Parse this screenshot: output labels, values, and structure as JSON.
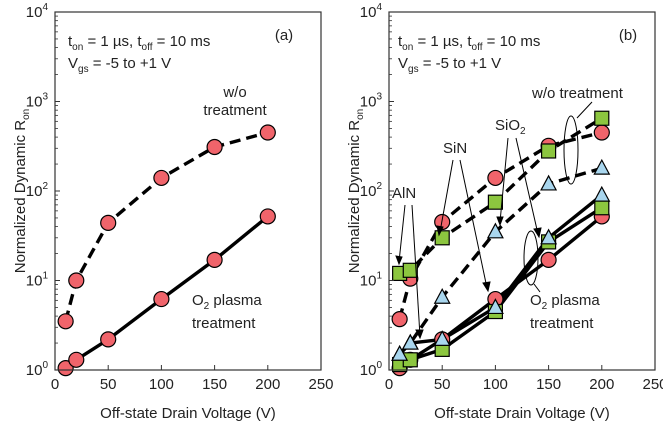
{
  "colors": {
    "circle_fill": "#f0646b",
    "square_fill": "#8cc63f",
    "triangle_fill": "#a9d6ee",
    "line": "#000000",
    "axis": "#333333"
  },
  "chart_data": [
    {
      "type": "line",
      "panel_label": "(a)",
      "xlabel": "Off-state Drain Voltage (V)",
      "ylabel_main": "Normalized Dynamic R",
      "ylabel_sub": "on",
      "ylog": true,
      "xlim": [
        0,
        250
      ],
      "ylim": [
        1,
        10000
      ],
      "xticks": [
        "0",
        "50",
        "100",
        "150",
        "200",
        "250"
      ],
      "ytick_exponents": [
        "0",
        "1",
        "2",
        "3",
        "4"
      ],
      "annotations": {
        "cond_line1": {
          "t": "t",
          "on": "on",
          "v1": " = 1 µs, t",
          "off": "off",
          "v2": " = 10 ms"
        },
        "cond_line2": {
          "v": "V",
          "gs": "gs",
          "rest": " = -5 to +1 V"
        },
        "untreated_line1": "w/o",
        "untreated_line2": "treatment",
        "treated_line1a": "O",
        "treated_line1_sub": "2",
        "treated_line1b": " plasma",
        "treated_line2": "treatment"
      },
      "series": [
        {
          "marker": "circle",
          "style": "dashed",
          "x": [
            10,
            20,
            50,
            100,
            150,
            200
          ],
          "y": [
            3.5,
            10,
            44,
            140,
            310,
            450
          ]
        },
        {
          "marker": "circle",
          "style": "solid",
          "x": [
            10,
            20,
            50,
            100,
            150,
            200
          ],
          "y": [
            1.05,
            1.3,
            2.2,
            6.2,
            17,
            52
          ]
        }
      ]
    },
    {
      "type": "line",
      "panel_label": "(b)",
      "xlabel": "Off-state Drain Voltage (V)",
      "ylabel_main": "Normalized Dynamic R",
      "ylabel_sub": "on",
      "ylog": true,
      "xlim": [
        0,
        250
      ],
      "ylim": [
        1,
        10000
      ],
      "xticks": [
        "0",
        "50",
        "100",
        "150",
        "200",
        "250"
      ],
      "ytick_exponents": [
        "0",
        "1",
        "2",
        "3",
        "4"
      ],
      "annotations": {
        "cond_line1": {
          "t": "t",
          "on": "on",
          "v1": " = 1 µs, t",
          "off": "off",
          "v2": " = 10 ms"
        },
        "cond_line2": {
          "v": "V",
          "gs": "gs",
          "rest": " = -5 to +1 V"
        },
        "untreated_label": "w/o treatment",
        "treated_line1a": "O",
        "treated_line1_sub": "2",
        "treated_line1b": " plasma",
        "treated_line2": "treatment",
        "aln": "AlN",
        "sin": "SiN",
        "sio2_main": "SiO",
        "sio2_sub": "2"
      },
      "series": [
        {
          "marker": "circle",
          "style": "dashed",
          "x": [
            10,
            20,
            50,
            100,
            150,
            200
          ],
          "y": [
            3.7,
            10.5,
            45,
            140,
            320,
            450
          ]
        },
        {
          "marker": "square",
          "style": "dashed",
          "x": [
            10,
            20,
            50,
            100,
            150,
            200
          ],
          "y": [
            12,
            13,
            30,
            75,
            280,
            650
          ]
        },
        {
          "marker": "triangle",
          "style": "dashed",
          "x": [
            10,
            20,
            50,
            100,
            150,
            200
          ],
          "y": [
            1.5,
            2,
            6.5,
            35,
            120,
            180
          ]
        },
        {
          "marker": "circle",
          "style": "solid",
          "x": [
            10,
            20,
            50,
            100,
            150,
            200
          ],
          "y": [
            1.05,
            1.3,
            2.2,
            6.2,
            17,
            52
          ]
        },
        {
          "marker": "square",
          "style": "solid",
          "x": [
            10,
            20,
            50,
            100,
            150,
            200
          ],
          "y": [
            1.15,
            1.3,
            1.7,
            4.5,
            27,
            65
          ]
        },
        {
          "marker": "triangle",
          "style": "solid",
          "x": [
            10,
            20,
            50,
            100,
            150,
            200
          ],
          "y": [
            1.5,
            2,
            2.2,
            5,
            30,
            90
          ]
        }
      ]
    }
  ]
}
